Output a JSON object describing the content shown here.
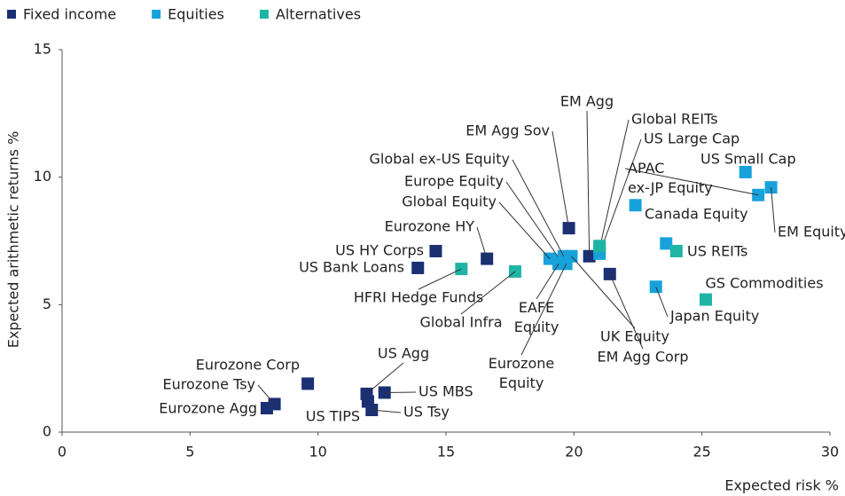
{
  "chart_data": {
    "type": "scatter",
    "x_label": "Expected risk %",
    "y_label": "Expected arithmetic returns %",
    "xlim": [
      0,
      30
    ],
    "xticks": [
      0,
      5,
      10,
      15,
      20,
      25,
      30
    ],
    "ylim": [
      0,
      15
    ],
    "yticks": [
      0,
      5,
      10,
      15
    ],
    "series": [
      {
        "name": "Fixed income",
        "color": "#1b2f73",
        "x": [
          8.0,
          8.3,
          9.6,
          11.9,
          12.6,
          11.95,
          12.1,
          13.9,
          14.6,
          16.6,
          19.8,
          20.6,
          21.4
        ],
        "values": [
          0.94,
          1.1,
          1.9,
          1.5,
          1.55,
          1.2,
          0.87,
          6.44,
          7.1,
          6.8,
          8.0,
          6.9,
          6.2
        ],
        "labels": [
          "Eurozone Agg",
          "Eurozone Tsy",
          "Eurozone Corp",
          "US Agg",
          "US MBS",
          "US TIPS",
          "US Tsy",
          "US Bank Loans",
          "US HY Corps",
          "Eurozone HY",
          "EM Agg Sov",
          "EM Agg",
          "EM Agg Corp"
        ]
      },
      {
        "name": "Equities",
        "color": "#17a2dc",
        "x": [
          19.05,
          19.5,
          19.6,
          19.4,
          19.7,
          19.9,
          21.0,
          21.0,
          22.4,
          27.2,
          26.7,
          27.7,
          23.6,
          23.2
        ],
        "values": [
          6.8,
          6.7,
          6.9,
          6.6,
          6.6,
          6.9,
          7.0,
          7.2,
          8.9,
          9.3,
          10.2,
          9.6,
          7.4,
          5.7
        ],
        "labels": [
          "Global Equity",
          "Europe Equity",
          "Global ex-US Equity",
          "EAFE Equity",
          "Eurozone Equity",
          "UK Equity",
          "US Large Cap",
          "Global REITs",
          "Canada Equity",
          "APAC ex-JP Equity",
          "US Small Cap",
          "EM Equity",
          "US REITs",
          "Japan Equity"
        ]
      },
      {
        "name": "Alternatives",
        "color": "#1fb5a5",
        "x": [
          15.6,
          17.7,
          25.15,
          21.0,
          24.0
        ],
        "values": [
          6.4,
          6.3,
          5.2,
          7.3,
          7.1
        ],
        "labels": [
          "HFRI Hedge Funds",
          "Global Infra",
          "GS Commodities",
          null,
          null
        ]
      }
    ]
  }
}
